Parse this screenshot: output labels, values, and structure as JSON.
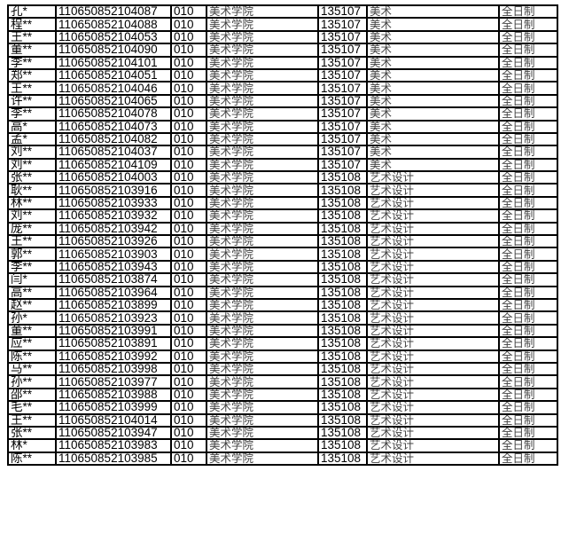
{
  "table": {
    "rows": [
      [
        "孔*",
        "110650852104087",
        "010",
        "美术学院",
        "135107",
        "美术",
        "全日制"
      ],
      [
        "程**",
        "110650852104088",
        "010",
        "美术学院",
        "135107",
        "美术",
        "全日制"
      ],
      [
        "王**",
        "110650852104053",
        "010",
        "美术学院",
        "135107",
        "美术",
        "全日制"
      ],
      [
        "董**",
        "110650852104090",
        "010",
        "美术学院",
        "135107",
        "美术",
        "全日制"
      ],
      [
        "李**",
        "110650852104101",
        "010",
        "美术学院",
        "135107",
        "美术",
        "全日制"
      ],
      [
        "郑**",
        "110650852104051",
        "010",
        "美术学院",
        "135107",
        "美术",
        "全日制"
      ],
      [
        "王**",
        "110650852104046",
        "010",
        "美术学院",
        "135107",
        "美术",
        "全日制"
      ],
      [
        "许**",
        "110650852104065",
        "010",
        "美术学院",
        "135107",
        "美术",
        "全日制"
      ],
      [
        "李**",
        "110650852104078",
        "010",
        "美术学院",
        "135107",
        "美术",
        "全日制"
      ],
      [
        "高*",
        "110650852104073",
        "010",
        "美术学院",
        "135107",
        "美术",
        "全日制"
      ],
      [
        "孟*",
        "110650852104082",
        "010",
        "美术学院",
        "135107",
        "美术",
        "全日制"
      ],
      [
        "刘**",
        "110650852104037",
        "010",
        "美术学院",
        "135107",
        "美术",
        "全日制"
      ],
      [
        "刘**",
        "110650852104109",
        "010",
        "美术学院",
        "135107",
        "美术",
        "全日制"
      ],
      [
        "张**",
        "110650852104003",
        "010",
        "美术学院",
        "135108",
        "艺术设计",
        "全日制"
      ],
      [
        "耿**",
        "110650852103916",
        "010",
        "美术学院",
        "135108",
        "艺术设计",
        "全日制"
      ],
      [
        "林**",
        "110650852103933",
        "010",
        "美术学院",
        "135108",
        "艺术设计",
        "全日制"
      ],
      [
        "刘**",
        "110650852103932",
        "010",
        "美术学院",
        "135108",
        "艺术设计",
        "全日制"
      ],
      [
        "庞**",
        "110650852103942",
        "010",
        "美术学院",
        "135108",
        "艺术设计",
        "全日制"
      ],
      [
        "王**",
        "110650852103926",
        "010",
        "美术学院",
        "135108",
        "艺术设计",
        "全日制"
      ],
      [
        "郭**",
        "110650852103903",
        "010",
        "美术学院",
        "135108",
        "艺术设计",
        "全日制"
      ],
      [
        "李**",
        "110650852103943",
        "010",
        "美术学院",
        "135108",
        "艺术设计",
        "全日制"
      ],
      [
        "闫*",
        "110650852103874",
        "010",
        "美术学院",
        "135108",
        "艺术设计",
        "全日制"
      ],
      [
        "高**",
        "110650852103964",
        "010",
        "美术学院",
        "135108",
        "艺术设计",
        "全日制"
      ],
      [
        "赵**",
        "110650852103899",
        "010",
        "美术学院",
        "135108",
        "艺术设计",
        "全日制"
      ],
      [
        "孙*",
        "110650852103923",
        "010",
        "美术学院",
        "135108",
        "艺术设计",
        "全日制"
      ],
      [
        "董**",
        "110650852103991",
        "010",
        "美术学院",
        "135108",
        "艺术设计",
        "全日制"
      ],
      [
        "应**",
        "110650852103891",
        "010",
        "美术学院",
        "135108",
        "艺术设计",
        "全日制"
      ],
      [
        "陈**",
        "110650852103992",
        "010",
        "美术学院",
        "135108",
        "艺术设计",
        "全日制"
      ],
      [
        "马**",
        "110650852103998",
        "010",
        "美术学院",
        "135108",
        "艺术设计",
        "全日制"
      ],
      [
        "孙**",
        "110650852103977",
        "010",
        "美术学院",
        "135108",
        "艺术设计",
        "全日制"
      ],
      [
        "邵**",
        "110650852103988",
        "010",
        "美术学院",
        "135108",
        "艺术设计",
        "全日制"
      ],
      [
        "毛**",
        "110650852103999",
        "010",
        "美术学院",
        "135108",
        "艺术设计",
        "全日制"
      ],
      [
        "王**",
        "110650852104014",
        "010",
        "美术学院",
        "135108",
        "艺术设计",
        "全日制"
      ],
      [
        "张**",
        "110650852103947",
        "010",
        "美术学院",
        "135108",
        "艺术设计",
        "全日制"
      ],
      [
        "林*",
        "110650852103983",
        "010",
        "美术学院",
        "135108",
        "艺术设计",
        "全日制"
      ],
      [
        "陈**",
        "110650852103985",
        "010",
        "美术学院",
        "135108",
        "艺术设计",
        "全日制"
      ]
    ]
  }
}
